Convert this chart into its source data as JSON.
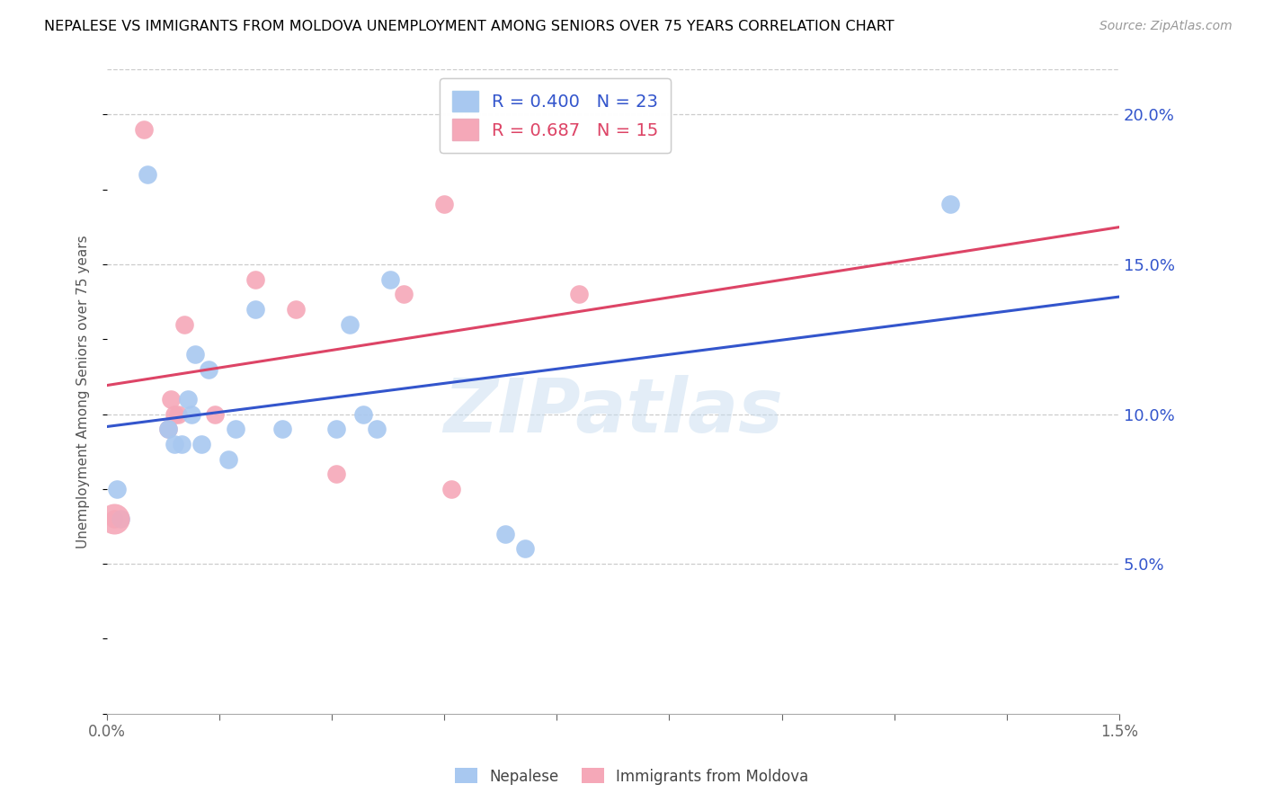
{
  "title": "NEPALESE VS IMMIGRANTS FROM MOLDOVA UNEMPLOYMENT AMONG SENIORS OVER 75 YEARS CORRELATION CHART",
  "source": "Source: ZipAtlas.com",
  "ylabel": "Unemployment Among Seniors over 75 years",
  "right_yticks": [
    0.05,
    0.1,
    0.15,
    0.2
  ],
  "right_yticklabels": [
    "5.0%",
    "10.0%",
    "15.0%",
    "20.0%"
  ],
  "nepalese_color": "#a8c8f0",
  "moldova_color": "#f5a8b8",
  "nepalese_line_color": "#3355cc",
  "moldova_line_color": "#dd4466",
  "nepalese_R": 0.4,
  "nepalese_N": 23,
  "moldova_R": 0.687,
  "moldova_N": 15,
  "watermark": "ZIPatlas",
  "nepalese_x": [
    0.00015,
    0.0002,
    0.0006,
    0.0009,
    0.001,
    0.0011,
    0.0012,
    0.00125,
    0.0013,
    0.0014,
    0.0015,
    0.0018,
    0.0019,
    0.0022,
    0.0026,
    0.0034,
    0.0036,
    0.0038,
    0.004,
    0.0042,
    0.0059,
    0.0062,
    0.0125
  ],
  "nepalese_y": [
    0.075,
    0.065,
    0.18,
    0.095,
    0.09,
    0.09,
    0.105,
    0.1,
    0.12,
    0.09,
    0.115,
    0.085,
    0.095,
    0.135,
    0.095,
    0.095,
    0.13,
    0.1,
    0.095,
    0.145,
    0.06,
    0.055,
    0.17
  ],
  "moldova_x": [
    0.0001,
    0.00055,
    0.0009,
    0.00095,
    0.001,
    0.00105,
    0.00115,
    0.0016,
    0.0022,
    0.0028,
    0.0034,
    0.0044,
    0.005,
    0.0051,
    0.007
  ],
  "moldova_y": [
    0.065,
    0.195,
    0.095,
    0.105,
    0.1,
    0.1,
    0.13,
    0.1,
    0.145,
    0.135,
    0.08,
    0.14,
    0.17,
    0.075,
    0.14
  ],
  "xlim": [
    0,
    0.015
  ],
  "ylim": [
    0,
    0.215
  ],
  "figsize": [
    14.06,
    8.92
  ],
  "dpi": 100
}
